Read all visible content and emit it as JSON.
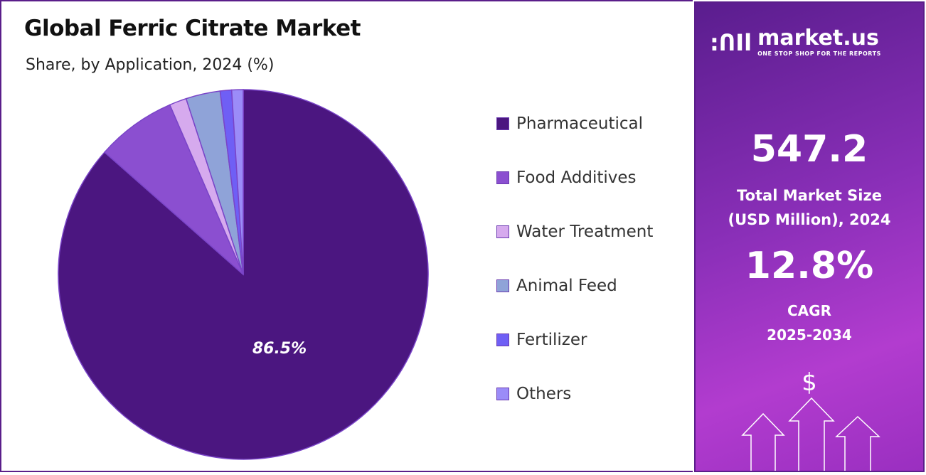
{
  "chart_data": {
    "type": "pie",
    "title": "Global Ferric Citrate Market",
    "subtitle": "Share, by Application, 2024 (%)",
    "categories": [
      "Pharmaceutical",
      "Food Additives",
      "Water Treatment",
      "Animal Feed",
      "Fertilizer",
      "Others"
    ],
    "values": [
      86.5,
      7.0,
      1.5,
      3.0,
      1.0,
      1.0
    ],
    "colors": [
      "#4b1680",
      "#8b4fd0",
      "#d6aaee",
      "#8fa3d8",
      "#6f5ff5",
      "#9b8cf8"
    ],
    "data_labels": [
      "86.5%",
      "",
      "",
      "",
      "",
      ""
    ],
    "legend_position": "right"
  },
  "side": {
    "logo_name": "market.us",
    "logo_tagline": "ONE STOP SHOP FOR THE REPORTS",
    "market_size": "547.2",
    "market_size_label_1": "Total Market Size",
    "market_size_label_2": "(USD Million), 2024",
    "cagr": "12.8%",
    "cagr_label_1": "CAGR",
    "cagr_label_2": "2025-2034",
    "currency_symbol": "$"
  }
}
